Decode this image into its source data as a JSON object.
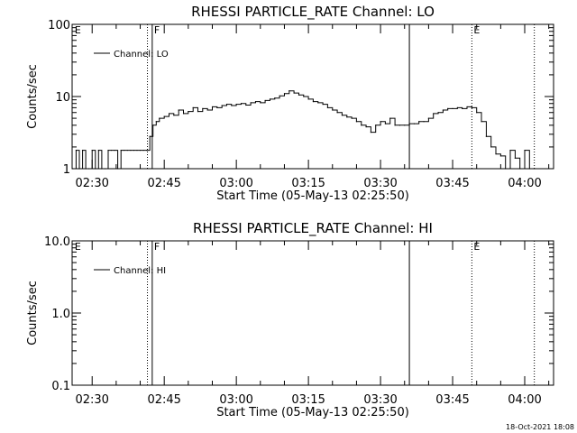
{
  "footer": {
    "date": "18-Oct-2021 18:08"
  },
  "chart_data": [
    {
      "type": "line",
      "title": "RHESSI PARTICLE_RATE Channel: LO",
      "ylabel": "Counts/sec",
      "xlabel": "Start Time (05-May-13 02:25:50)",
      "yscale": "log",
      "ylim": [
        1,
        100
      ],
      "y_ticks": [
        {
          "v": 1,
          "label": "1"
        },
        {
          "v": 10,
          "label": "10"
        },
        {
          "v": 100,
          "label": "100"
        }
      ],
      "xlim": [
        "02:25:50",
        "04:06:00"
      ],
      "x_ticks": [
        "02:30",
        "02:45",
        "03:00",
        "03:15",
        "03:30",
        "03:45",
        "04:00"
      ],
      "legend": {
        "label": "Channel: LO",
        "position": "top-left"
      },
      "markers": [
        {
          "time": "02:26:00",
          "label": "E",
          "style": "none"
        },
        {
          "time": "02:41:30",
          "label": "",
          "style": "dotted"
        },
        {
          "time": "02:42:30",
          "label": "F",
          "style": "solid"
        },
        {
          "time": "03:36:00",
          "label": "",
          "style": "solid"
        },
        {
          "time": "03:49:00",
          "label": "E",
          "style": "dotted"
        },
        {
          "time": "04:02:00",
          "label": "",
          "style": "dotted"
        }
      ],
      "series": [
        {
          "x": [
            "02:26:00",
            "02:26:40",
            "02:27:20",
            "02:28:00",
            "02:28:40",
            "02:29:20",
            "02:30:00",
            "02:30:40",
            "02:31:20",
            "02:32:00",
            "02:32:40",
            "02:33:20",
            "02:34:00",
            "02:34:40",
            "02:35:20",
            "02:36:00",
            "02:36:40",
            "02:37:20",
            "02:38:00",
            "02:38:40",
            "02:39:20",
            "02:40:00",
            "02:40:40",
            "02:41:20",
            "02:42:00",
            "02:42:40",
            "02:43:20",
            "02:44:00",
            "02:45:00",
            "02:46:00",
            "02:47:00",
            "02:48:00",
            "02:49:00",
            "02:50:00",
            "02:51:00",
            "02:52:00",
            "02:53:00",
            "02:54:00",
            "02:55:00",
            "02:56:00",
            "02:57:00",
            "02:58:00",
            "02:59:00",
            "03:00:00",
            "03:01:00",
            "03:02:00",
            "03:03:00",
            "03:04:00",
            "03:05:00",
            "03:06:00",
            "03:07:00",
            "03:08:00",
            "03:09:00",
            "03:10:00",
            "03:11:00",
            "03:12:00",
            "03:13:00",
            "03:14:00",
            "03:15:00",
            "03:16:00",
            "03:17:00",
            "03:18:00",
            "03:19:00",
            "03:20:00",
            "03:21:00",
            "03:22:00",
            "03:23:00",
            "03:24:00",
            "03:25:00",
            "03:26:00",
            "03:27:00",
            "03:28:00",
            "03:29:00",
            "03:30:00",
            "03:31:00",
            "03:32:00",
            "03:33:00",
            "03:34:00",
            "03:35:00",
            "03:36:00",
            "03:37:00",
            "03:38:00",
            "03:39:00",
            "03:40:00",
            "03:41:00",
            "03:42:00",
            "03:43:00",
            "03:44:00",
            "03:45:00",
            "03:46:00",
            "03:47:00",
            "03:48:00",
            "03:49:00",
            "03:50:00",
            "03:51:00",
            "03:52:00",
            "03:53:00",
            "03:54:00",
            "03:55:00",
            "03:56:00",
            "03:57:00",
            "03:58:00",
            "03:59:00",
            "04:00:00",
            "04:01:00",
            "04:02:00"
          ],
          "values": [
            1,
            1.8,
            1,
            1.8,
            1,
            1,
            1.8,
            1,
            1.8,
            1,
            1,
            1.8,
            1.8,
            1.8,
            1,
            1.8,
            1.8,
            1.8,
            1.8,
            1.8,
            1.8,
            1.8,
            1.8,
            1.8,
            2.8,
            4,
            4.5,
            5,
            5.3,
            5.8,
            5.5,
            6.5,
            5.8,
            6.2,
            7,
            6.2,
            6.8,
            6.5,
            7.2,
            7,
            7.5,
            7.8,
            7.5,
            7.8,
            8,
            7.6,
            8.2,
            8.5,
            8.2,
            8.8,
            9.2,
            9.5,
            10.2,
            11,
            12,
            11.2,
            10.5,
            10,
            9.2,
            8.5,
            8.2,
            7.8,
            7,
            6.5,
            6,
            5.5,
            5.2,
            5,
            4.5,
            4,
            3.8,
            3.2,
            4,
            4.5,
            4.2,
            5,
            4,
            4,
            4,
            4.2,
            4.2,
            4.5,
            4.5,
            5,
            5.8,
            6,
            6.5,
            6.8,
            6.8,
            7,
            6.8,
            7.2,
            7,
            6,
            4.5,
            2.8,
            2,
            1.6,
            1.5,
            1,
            1.8,
            1.4,
            1,
            1.8,
            1,
            1
          ]
        }
      ]
    },
    {
      "type": "line",
      "title": "RHESSI PARTICLE_RATE Channel: HI",
      "ylabel": "Counts/sec",
      "xlabel": "Start Time (05-May-13 02:25:50)",
      "yscale": "log",
      "ylim": [
        0.1,
        10
      ],
      "y_ticks": [
        {
          "v": 0.1,
          "label": "0.1"
        },
        {
          "v": 1,
          "label": "1.0"
        },
        {
          "v": 10,
          "label": "10.0"
        }
      ],
      "xlim": [
        "02:25:50",
        "04:06:00"
      ],
      "x_ticks": [
        "02:30",
        "02:45",
        "03:00",
        "03:15",
        "03:30",
        "03:45",
        "04:00"
      ],
      "legend": {
        "label": "Channel: HI",
        "position": "top-left"
      },
      "markers": [
        {
          "time": "02:26:00",
          "label": "E",
          "style": "none"
        },
        {
          "time": "02:41:30",
          "label": "",
          "style": "dotted"
        },
        {
          "time": "02:42:30",
          "label": "F",
          "style": "solid"
        },
        {
          "time": "03:36:00",
          "label": "",
          "style": "solid"
        },
        {
          "time": "03:49:00",
          "label": "E",
          "style": "dotted"
        },
        {
          "time": "04:02:00",
          "label": "",
          "style": "dotted"
        }
      ],
      "series": [
        {
          "x": [],
          "values": []
        }
      ]
    }
  ]
}
